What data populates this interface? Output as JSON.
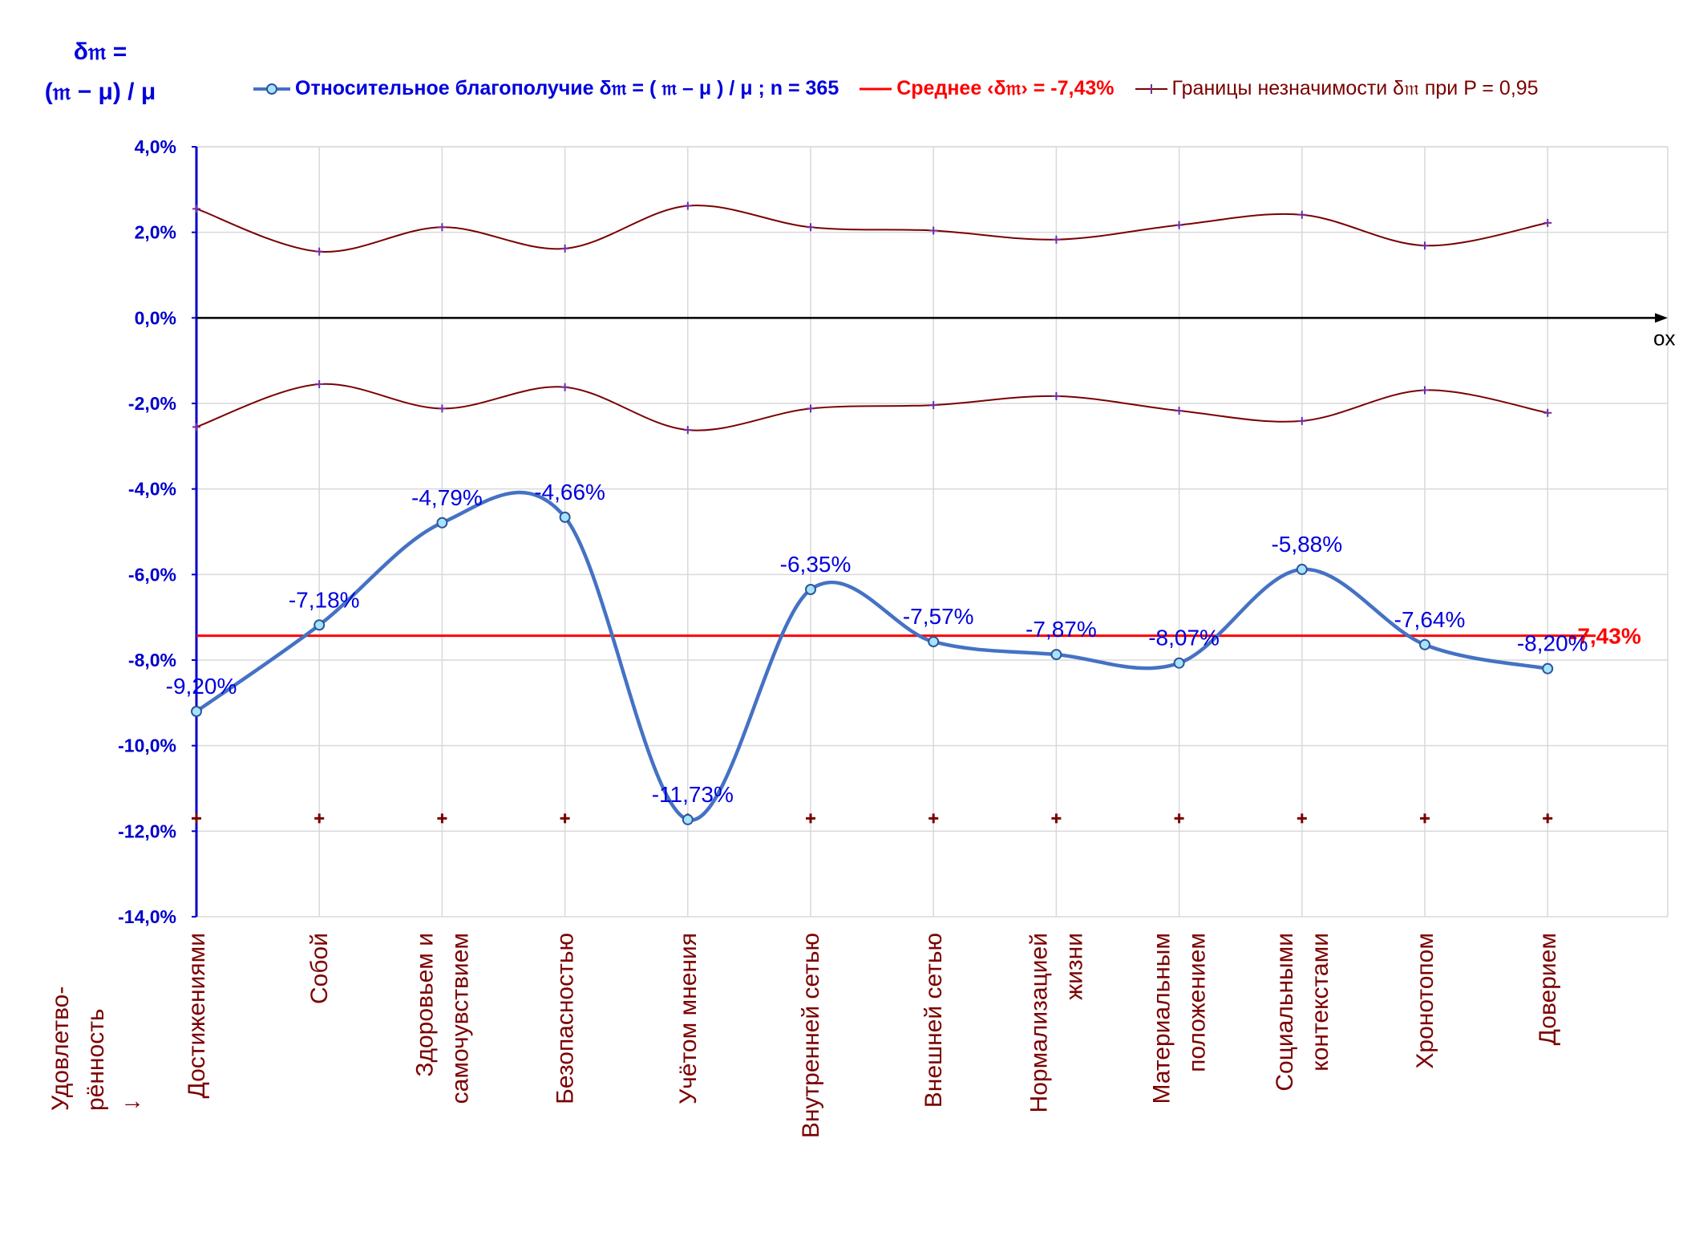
{
  "y_axis_title": {
    "line1": "δ𝔪 =",
    "line2": "(𝔪 − μ) / μ"
  },
  "legend": {
    "series": "Относительное благополучие δ𝔪 = ( 𝔪 – μ ) / μ ; n = 365",
    "mean": "Среднее ‹δ𝔪› = -7,43%",
    "bounds": "Границы незначимости δ𝔪 при P = 0,95"
  },
  "x_axis_arrow_label": "ox",
  "row_title": {
    "line1": "Удовлетво-",
    "line2": "рённость",
    "arrow": "↓"
  },
  "colors": {
    "series": "#4472c4",
    "mean": "#ff0000",
    "bounds": "#7b0000",
    "axis": "#0000cc",
    "labels": "#0000dd",
    "categories": "#7b0000",
    "grid": "#d9d9d9",
    "marker_fill": "#a6e3ff"
  },
  "chart_data": {
    "type": "line",
    "smooth": true,
    "categories": [
      [
        "Достижениями"
      ],
      [
        "Собой"
      ],
      [
        "Здоровьем и",
        "самочувствием"
      ],
      [
        "Безопасностью"
      ],
      [
        "Учётом мнения"
      ],
      [
        "Внутренней сетью"
      ],
      [
        "Внешней сетью"
      ],
      [
        "Нормализацией",
        "жизни"
      ],
      [
        "Материальным",
        "положением"
      ],
      [
        "Социальными",
        "контекстами"
      ],
      [
        "Хронотопом"
      ],
      [
        "Доверием"
      ]
    ],
    "series": [
      {
        "name": "Относительное благополучие δ𝔪 = ( 𝔪 – μ ) / μ ; n = 365",
        "values": [
          -9.2,
          -7.18,
          -4.79,
          -4.66,
          -11.73,
          -6.35,
          -7.57,
          -7.87,
          -8.07,
          -5.88,
          -7.64,
          -8.2
        ],
        "labels": [
          "-9,20%",
          "-7,18%",
          "-4,79%",
          "-4,66%",
          "-11,73%",
          "-6,35%",
          "-7,57%",
          "-7,87%",
          "-8,07%",
          "-5,88%",
          "-7,64%",
          "-8,20%"
        ]
      },
      {
        "name": "Границы незначимости δ𝔪 при P = 0,95",
        "values": [
          2.55,
          1.55,
          2.12,
          1.62,
          2.62,
          2.12,
          2.04,
          1.83,
          2.17,
          2.41,
          1.69,
          2.22
        ]
      },
      {
        "name": "Границы незначимости δ𝔪 при P = 0,95",
        "values": [
          -2.55,
          -1.55,
          -2.12,
          -1.62,
          -2.62,
          -2.12,
          -2.04,
          -1.83,
          -2.17,
          -2.41,
          -1.69,
          -2.22
        ]
      }
    ],
    "bottom_markers_value": -11.7,
    "mean": {
      "value": -7.43,
      "label": "-7,43%"
    },
    "ylim": [
      -14,
      4
    ],
    "y_ticks": [
      {
        "v": 4,
        "label": "4,0%"
      },
      {
        "v": 2,
        "label": "2,0%"
      },
      {
        "v": 0,
        "label": "0,0%"
      },
      {
        "v": -2,
        "label": "-2,0%"
      },
      {
        "v": -4,
        "label": "-4,0%"
      },
      {
        "v": -6,
        "label": "-6,0%"
      },
      {
        "v": -8,
        "label": "-8,0%"
      },
      {
        "v": -10,
        "label": "-10,0%"
      },
      {
        "v": -12,
        "label": "-12,0%"
      },
      {
        "v": -14,
        "label": "-14,0%"
      }
    ],
    "grid": true
  }
}
